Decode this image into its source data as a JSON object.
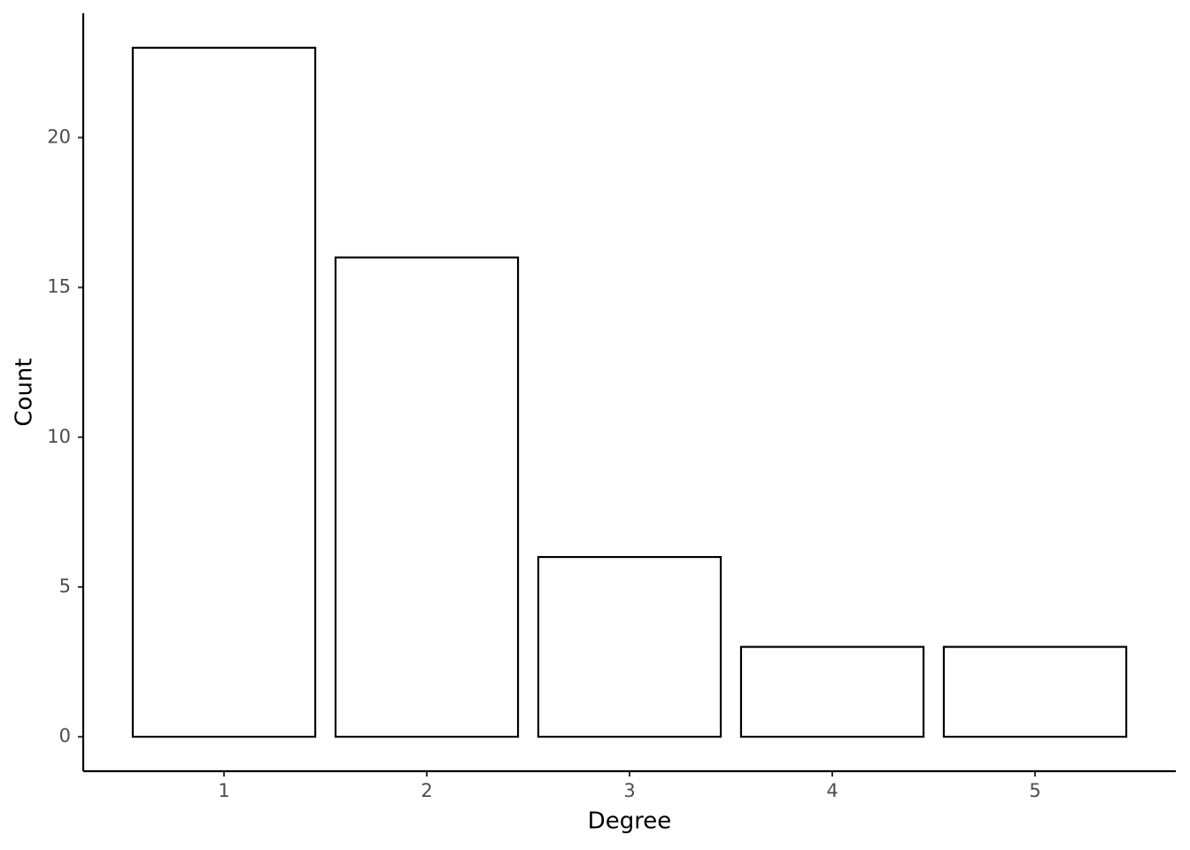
{
  "chart_data": {
    "type": "bar",
    "x_label": "Degree",
    "y_label": "Count",
    "categories": [
      "1",
      "2",
      "3",
      "4",
      "5"
    ],
    "values": [
      23,
      16,
      6,
      3,
      3
    ],
    "color": "#ffffff",
    "edge_color": "#000000",
    "ylim": [
      -1.15,
      24.15
    ],
    "yticks": [
      0,
      5,
      10,
      15,
      20
    ],
    "grid": false
  }
}
